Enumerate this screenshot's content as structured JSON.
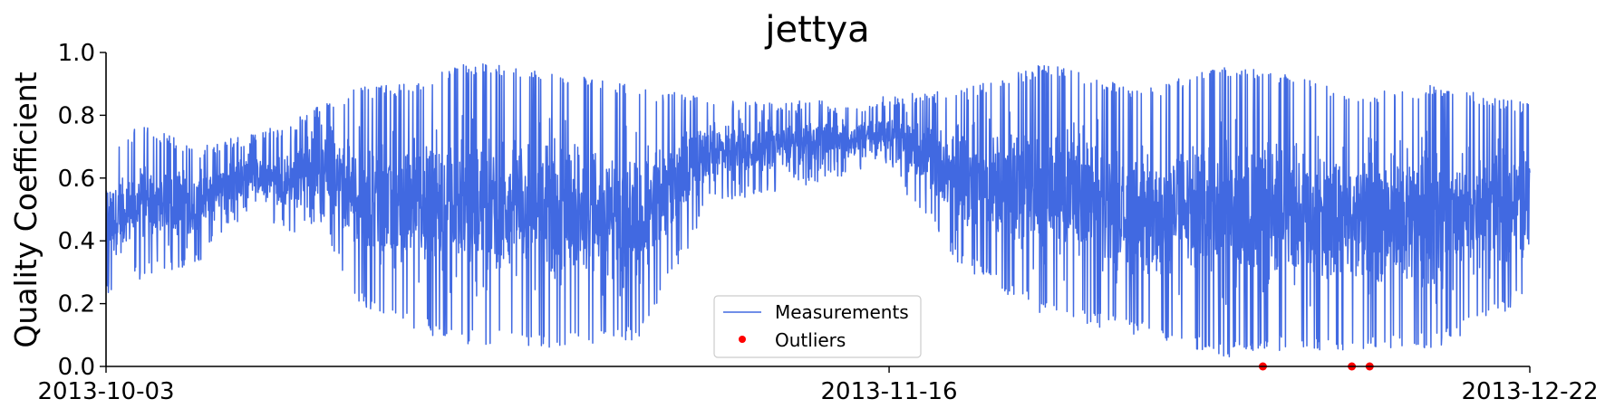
{
  "chart_data": {
    "type": "line",
    "title": "jettya",
    "xlabel": "",
    "ylabel": "Quality Coefficient",
    "x_start": "2013-10-03",
    "x_end": "2013-12-22",
    "x_ticks": [
      "2013-10-03",
      "2013-11-16",
      "2013-12-22"
    ],
    "ylim": [
      0,
      1.0
    ],
    "y_ticks": [
      "0.0",
      "0.2",
      "0.4",
      "0.6",
      "0.8",
      "1.0"
    ],
    "grid": false,
    "legend_position": "lower-center",
    "series": [
      {
        "name": "Measurements",
        "kind": "line",
        "color": "#4169e1",
        "profile_dates": [
          "2013-10-03",
          "2013-10-05",
          "2013-10-08",
          "2013-10-11",
          "2013-10-13",
          "2013-10-15",
          "2013-10-17",
          "2013-10-20",
          "2013-10-23",
          "2013-10-28",
          "2013-11-02",
          "2013-11-06",
          "2013-11-09",
          "2013-11-12",
          "2013-11-14",
          "2013-11-16",
          "2013-11-20",
          "2013-11-25",
          "2013-11-30",
          "2013-12-05",
          "2013-12-08",
          "2013-12-12",
          "2013-12-17",
          "2013-12-22"
        ],
        "upper_envelope": [
          0.68,
          0.78,
          0.7,
          0.74,
          0.77,
          0.83,
          0.89,
          0.9,
          0.97,
          0.95,
          0.89,
          0.86,
          0.84,
          0.85,
          0.82,
          0.87,
          0.88,
          0.97,
          0.88,
          0.96,
          0.94,
          0.87,
          0.9,
          0.84
        ],
        "lower_envelope": [
          0.22,
          0.28,
          0.31,
          0.5,
          0.4,
          0.47,
          0.2,
          0.12,
          0.07,
          0.06,
          0.08,
          0.52,
          0.55,
          0.58,
          0.62,
          0.62,
          0.32,
          0.15,
          0.1,
          0.03,
          0.05,
          0.05,
          0.06,
          0.22
        ]
      },
      {
        "name": "Outliers",
        "kind": "scatter",
        "color": "#ff0000",
        "points": [
          {
            "x": "2013-12-07",
            "y": 0.0
          },
          {
            "x": "2013-12-12",
            "y": 0.0
          },
          {
            "x": "2013-12-13",
            "y": 0.0
          }
        ]
      }
    ]
  }
}
